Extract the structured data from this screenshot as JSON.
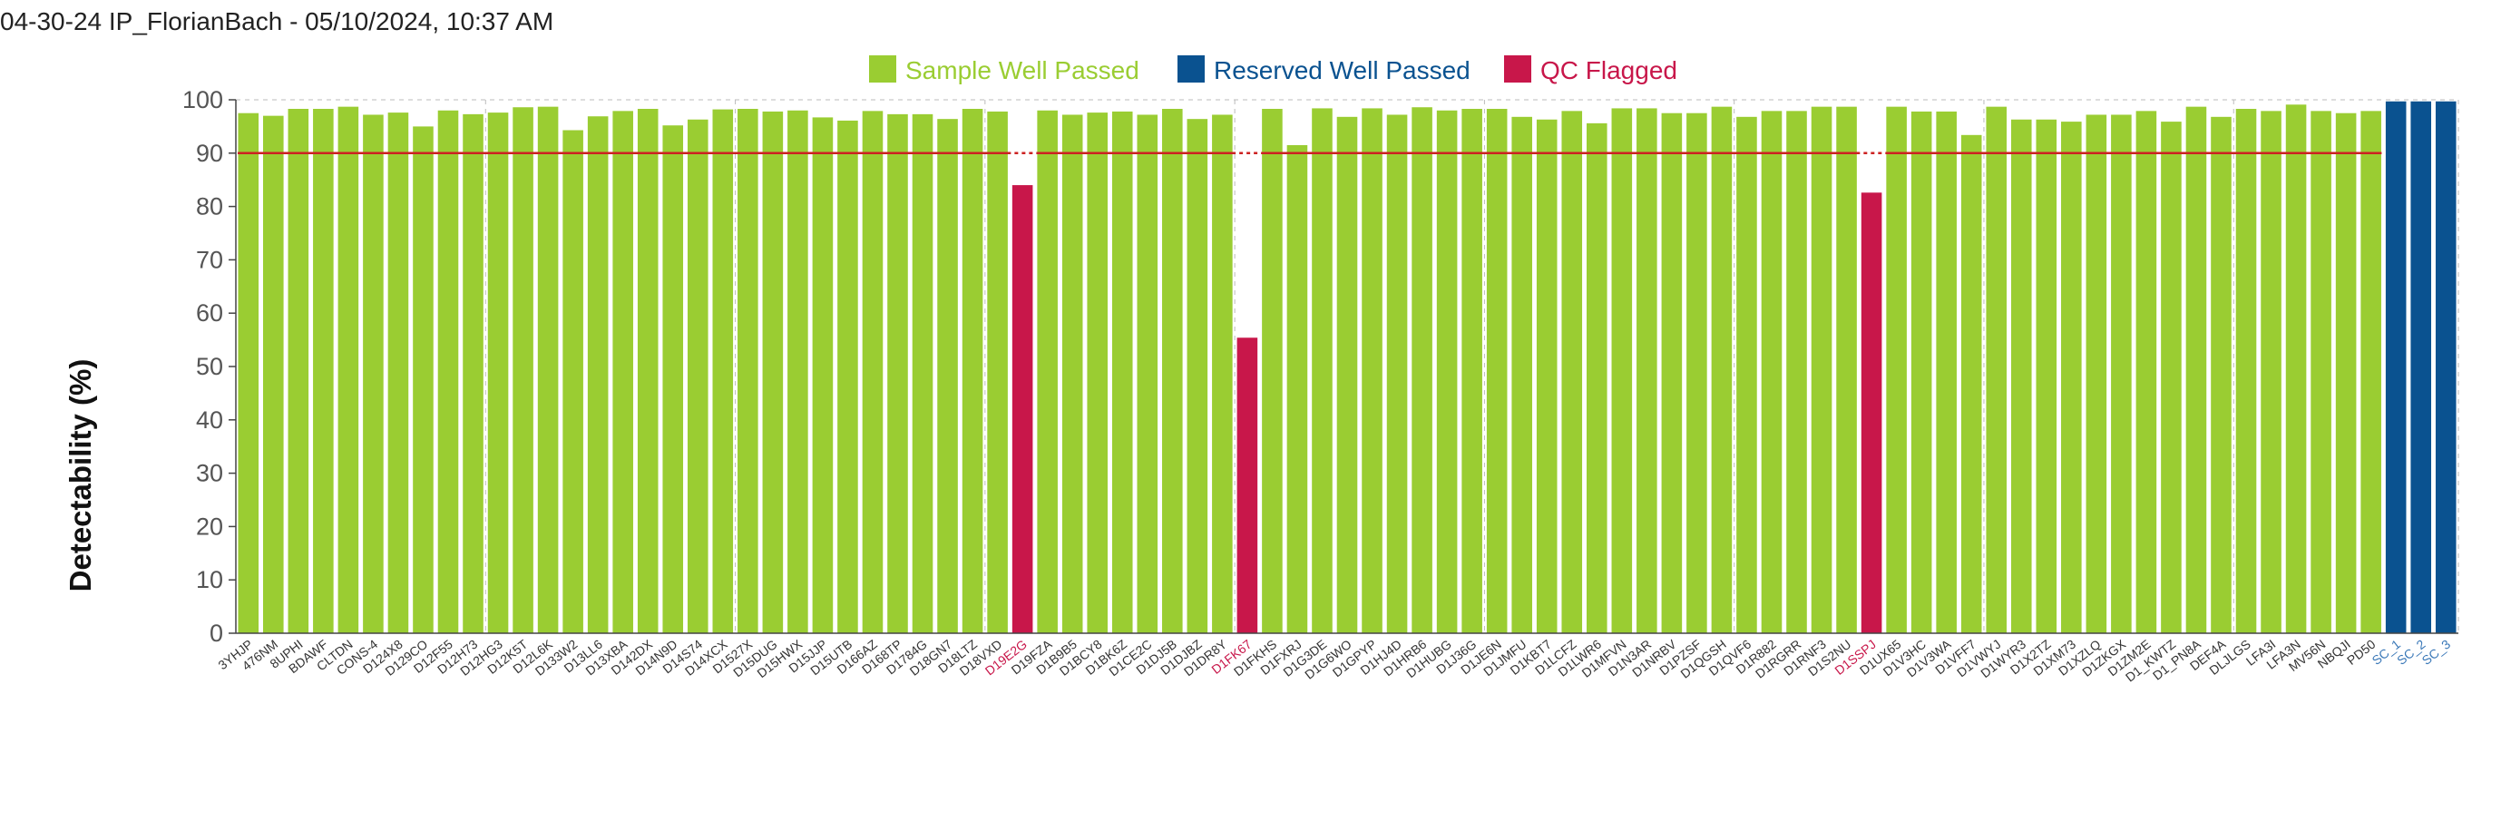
{
  "header": {
    "title": "04-30-24 IP_FlorianBach - 05/10/2024, 10:37 AM"
  },
  "colors": {
    "sample_passed": "#9ACD32",
    "reserved_passed": "#0A5290",
    "qc_flagged": "#C8174A",
    "threshold_line": "#CC2222",
    "flagged_label": "#C8174A",
    "reserved_label": "#3A78B8",
    "normal_label": "#333333"
  },
  "chart_data": {
    "type": "bar",
    "ylabel": "Detectability (%)",
    "ylim": [
      0,
      100
    ],
    "yticks": [
      0,
      10,
      20,
      30,
      40,
      50,
      60,
      70,
      80,
      90,
      100
    ],
    "threshold": 90,
    "grid": "vertical dashed lines at every 10th bar",
    "legend_position": "top-center",
    "legend": [
      {
        "label": "Sample Well Passed",
        "status": "passed"
      },
      {
        "label": "Reserved Well Passed",
        "status": "reserved"
      },
      {
        "label": "QC Flagged",
        "status": "flagged"
      }
    ],
    "bars": [
      {
        "label": "3YHJP",
        "value": 97.5,
        "status": "passed"
      },
      {
        "label": "476NM",
        "value": 97.0,
        "status": "passed"
      },
      {
        "label": "8UPHI",
        "value": 98.3,
        "status": "passed"
      },
      {
        "label": "BDAWF",
        "value": 98.3,
        "status": "passed"
      },
      {
        "label": "CLTDN",
        "value": 98.7,
        "status": "passed"
      },
      {
        "label": "CONS-4",
        "value": 97.2,
        "status": "passed"
      },
      {
        "label": "D124X8",
        "value": 97.6,
        "status": "passed"
      },
      {
        "label": "D129CO",
        "value": 95.0,
        "status": "passed"
      },
      {
        "label": "D12F55",
        "value": 98.0,
        "status": "passed"
      },
      {
        "label": "D12H73",
        "value": 97.3,
        "status": "passed"
      },
      {
        "label": "D12HG3",
        "value": 97.6,
        "status": "passed"
      },
      {
        "label": "D12K5T",
        "value": 98.6,
        "status": "passed"
      },
      {
        "label": "D12L6K",
        "value": 98.7,
        "status": "passed"
      },
      {
        "label": "D133W2",
        "value": 94.3,
        "status": "passed"
      },
      {
        "label": "D13LL6",
        "value": 96.9,
        "status": "passed"
      },
      {
        "label": "D13XBA",
        "value": 97.9,
        "status": "passed"
      },
      {
        "label": "D142DX",
        "value": 98.3,
        "status": "passed"
      },
      {
        "label": "D14N9D",
        "value": 95.2,
        "status": "passed"
      },
      {
        "label": "D14S74",
        "value": 96.3,
        "status": "passed"
      },
      {
        "label": "D14XCX",
        "value": 98.2,
        "status": "passed"
      },
      {
        "label": "D1527X",
        "value": 98.3,
        "status": "passed"
      },
      {
        "label": "D15DUG",
        "value": 97.8,
        "status": "passed"
      },
      {
        "label": "D15HWX",
        "value": 98.0,
        "status": "passed"
      },
      {
        "label": "D15JJP",
        "value": 96.7,
        "status": "passed"
      },
      {
        "label": "D15UTB",
        "value": 96.1,
        "status": "passed"
      },
      {
        "label": "D166AZ",
        "value": 97.9,
        "status": "passed"
      },
      {
        "label": "D168TP",
        "value": 97.3,
        "status": "passed"
      },
      {
        "label": "D1784G",
        "value": 97.3,
        "status": "passed"
      },
      {
        "label": "D18GN7",
        "value": 96.4,
        "status": "passed"
      },
      {
        "label": "D18LTZ",
        "value": 98.3,
        "status": "passed"
      },
      {
        "label": "D18VXD",
        "value": 97.8,
        "status": "passed"
      },
      {
        "label": "D19E2G",
        "value": 84.0,
        "status": "flagged"
      },
      {
        "label": "D19FZA",
        "value": 98.0,
        "status": "passed"
      },
      {
        "label": "D1B9B5",
        "value": 97.2,
        "status": "passed"
      },
      {
        "label": "D1BCY8",
        "value": 97.6,
        "status": "passed"
      },
      {
        "label": "D1BK6Z",
        "value": 97.8,
        "status": "passed"
      },
      {
        "label": "D1CE2C",
        "value": 97.2,
        "status": "passed"
      },
      {
        "label": "D1DJ5B",
        "value": 98.3,
        "status": "passed"
      },
      {
        "label": "D1DJBZ",
        "value": 96.4,
        "status": "passed"
      },
      {
        "label": "D1DR8Y",
        "value": 97.2,
        "status": "passed"
      },
      {
        "label": "D1FK67",
        "value": 55.4,
        "status": "flagged"
      },
      {
        "label": "D1FKHS",
        "value": 98.3,
        "status": "passed"
      },
      {
        "label": "D1FXRJ",
        "value": 91.5,
        "status": "passed"
      },
      {
        "label": "D1G3DE",
        "value": 98.4,
        "status": "passed"
      },
      {
        "label": "D1G6WO",
        "value": 96.8,
        "status": "passed"
      },
      {
        "label": "D1GPYP",
        "value": 98.4,
        "status": "passed"
      },
      {
        "label": "D1HJ4D",
        "value": 97.2,
        "status": "passed"
      },
      {
        "label": "D1HRB6",
        "value": 98.6,
        "status": "passed"
      },
      {
        "label": "D1HUBG",
        "value": 98.0,
        "status": "passed"
      },
      {
        "label": "D1J36G",
        "value": 98.3,
        "status": "passed"
      },
      {
        "label": "D1JE6N",
        "value": 98.3,
        "status": "passed"
      },
      {
        "label": "D1JMFU",
        "value": 96.8,
        "status": "passed"
      },
      {
        "label": "D1KBT7",
        "value": 96.3,
        "status": "passed"
      },
      {
        "label": "D1LCFZ",
        "value": 97.9,
        "status": "passed"
      },
      {
        "label": "D1LWR6",
        "value": 95.6,
        "status": "passed"
      },
      {
        "label": "D1MFVN",
        "value": 98.4,
        "status": "passed"
      },
      {
        "label": "D1N3AR",
        "value": 98.4,
        "status": "passed"
      },
      {
        "label": "D1NRBV",
        "value": 97.5,
        "status": "passed"
      },
      {
        "label": "D1PZSF",
        "value": 97.5,
        "status": "passed"
      },
      {
        "label": "D1QGSH",
        "value": 98.7,
        "status": "passed"
      },
      {
        "label": "D1QVF6",
        "value": 96.8,
        "status": "passed"
      },
      {
        "label": "D1R882",
        "value": 97.9,
        "status": "passed"
      },
      {
        "label": "D1RGRR",
        "value": 97.9,
        "status": "passed"
      },
      {
        "label": "D1RNF3",
        "value": 98.7,
        "status": "passed"
      },
      {
        "label": "D1S2NU",
        "value": 98.7,
        "status": "passed"
      },
      {
        "label": "D1SSPJ",
        "value": 82.6,
        "status": "flagged"
      },
      {
        "label": "D1UX65",
        "value": 98.7,
        "status": "passed"
      },
      {
        "label": "D1V3HC",
        "value": 97.8,
        "status": "passed"
      },
      {
        "label": "D1V3WA",
        "value": 97.8,
        "status": "passed"
      },
      {
        "label": "D1VFF7",
        "value": 93.4,
        "status": "passed"
      },
      {
        "label": "D1VWYJ",
        "value": 98.7,
        "status": "passed"
      },
      {
        "label": "D1WYR3",
        "value": 96.3,
        "status": "passed"
      },
      {
        "label": "D1X2TZ",
        "value": 96.3,
        "status": "passed"
      },
      {
        "label": "D1XM73",
        "value": 95.9,
        "status": "passed"
      },
      {
        "label": "D1XZLQ",
        "value": 97.2,
        "status": "passed"
      },
      {
        "label": "D1ZKGX",
        "value": 97.2,
        "status": "passed"
      },
      {
        "label": "D1ZM2E",
        "value": 97.9,
        "status": "passed"
      },
      {
        "label": "D1_KWTZ",
        "value": 95.9,
        "status": "passed"
      },
      {
        "label": "D1_PN8A",
        "value": 98.7,
        "status": "passed"
      },
      {
        "label": "DEF4A",
        "value": 96.8,
        "status": "passed"
      },
      {
        "label": "DLJLGS",
        "value": 98.3,
        "status": "passed"
      },
      {
        "label": "LFA3I",
        "value": 97.9,
        "status": "passed"
      },
      {
        "label": "LFA3N",
        "value": 99.1,
        "status": "passed"
      },
      {
        "label": "MV56N",
        "value": 97.9,
        "status": "passed"
      },
      {
        "label": "NBQJI",
        "value": 97.5,
        "status": "passed"
      },
      {
        "label": "PD50",
        "value": 97.9,
        "status": "passed"
      },
      {
        "label": "SC_1",
        "value": 99.7,
        "status": "reserved"
      },
      {
        "label": "SC_2",
        "value": 99.7,
        "status": "reserved"
      },
      {
        "label": "SC_3",
        "value": 99.7,
        "status": "reserved"
      }
    ]
  }
}
